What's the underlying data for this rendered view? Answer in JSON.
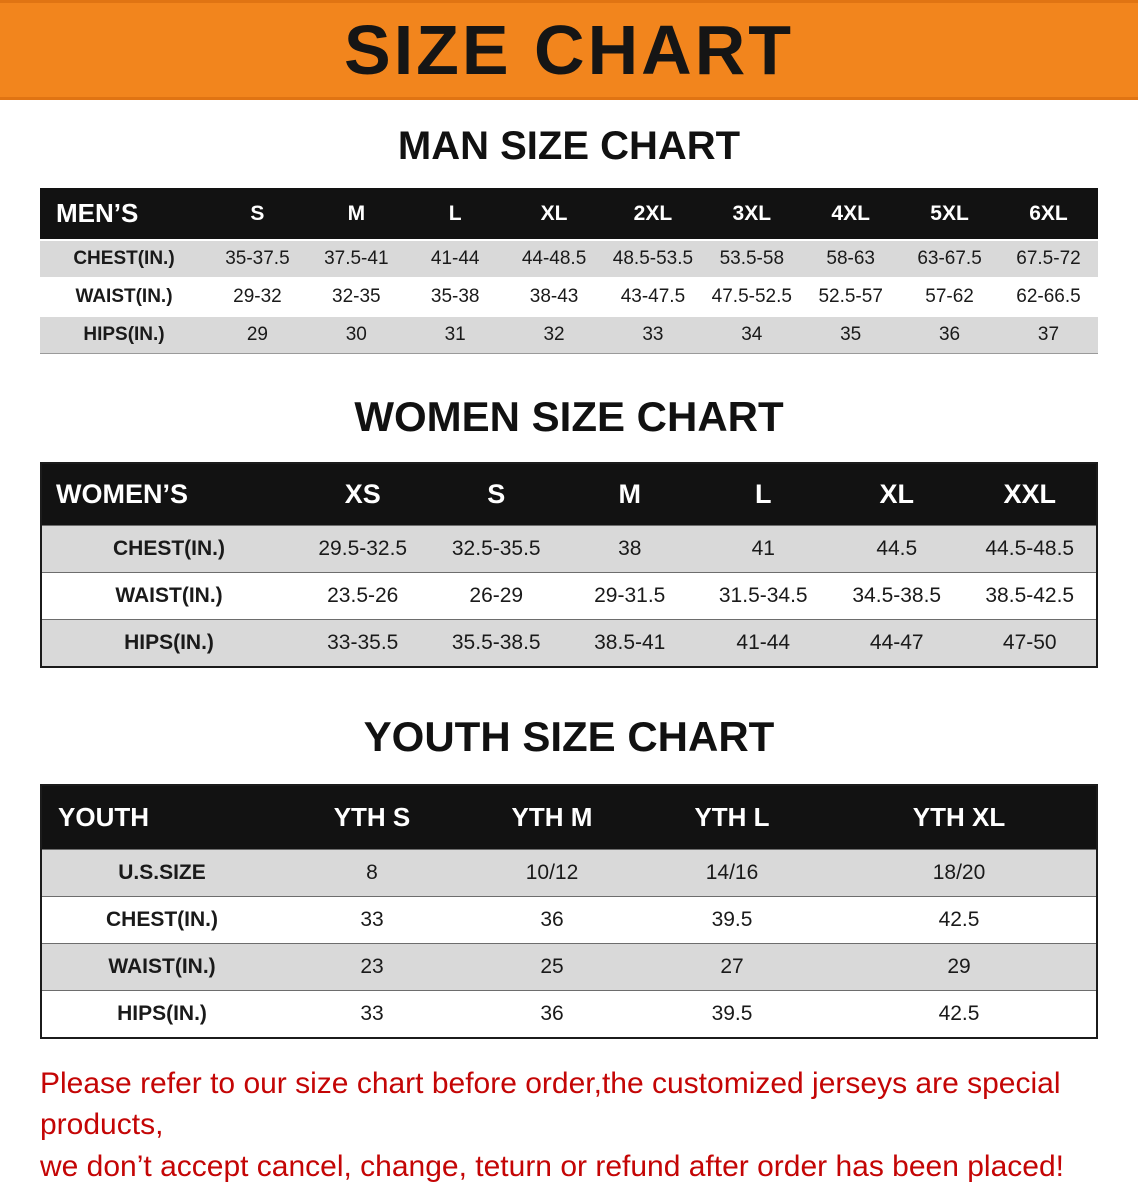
{
  "banner": {
    "title": "SIZE CHART",
    "bg_color": "#f2851d",
    "text_color": "#151515"
  },
  "sections": [
    {
      "heading": "MAN SIZE CHART",
      "table": {
        "header": [
          "MEN’S",
          "S",
          "M",
          "L",
          "XL",
          "2XL",
          "3XL",
          "4XL",
          "5XL",
          "6XL"
        ],
        "rows": [
          [
            "CHEST(IN.)",
            "35-37.5",
            "37.5-41",
            "41-44",
            "44-48.5",
            "48.5-53.5",
            "53.5-58",
            "58-63",
            "63-67.5",
            "67.5-72"
          ],
          [
            "WAIST(IN.)",
            "29-32",
            "32-35",
            "35-38",
            "38-43",
            "43-47.5",
            "47.5-52.5",
            "52.5-57",
            "57-62",
            "62-66.5"
          ],
          [
            "HIPS(IN.)",
            "29",
            "30",
            "31",
            "32",
            "33",
            "34",
            "35",
            "36",
            "37"
          ]
        ]
      }
    },
    {
      "heading": "WOMEN SIZE CHART",
      "table": {
        "header": [
          "WOMEN’S",
          "XS",
          "S",
          "M",
          "L",
          "XL",
          "XXL"
        ],
        "rows": [
          [
            "CHEST(IN.)",
            "29.5-32.5",
            "32.5-35.5",
            "38",
            "41",
            "44.5",
            "44.5-48.5"
          ],
          [
            "WAIST(IN.)",
            "23.5-26",
            "26-29",
            "29-31.5",
            "31.5-34.5",
            "34.5-38.5",
            "38.5-42.5"
          ],
          [
            "HIPS(IN.)",
            "33-35.5",
            "35.5-38.5",
            "38.5-41",
            "41-44",
            "44-47",
            "47-50"
          ]
        ]
      }
    },
    {
      "heading": "YOUTH SIZE CHART",
      "table": {
        "header": [
          "YOUTH",
          "YTH S",
          "YTH M",
          "YTH L",
          "YTH XL"
        ],
        "rows": [
          [
            "U.S.SIZE",
            "8",
            "10/12",
            "14/16",
            "18/20"
          ],
          [
            "CHEST(IN.)",
            "33",
            "36",
            "39.5",
            "42.5"
          ],
          [
            "WAIST(IN.)",
            "23",
            "25",
            "27",
            "29"
          ],
          [
            "HIPS(IN.)",
            "33",
            "36",
            "39.5",
            "42.5"
          ]
        ]
      }
    }
  ],
  "notice": {
    "line1": "Please refer to our size chart before order,the customized jerseys are special products,",
    "line2": "we don’t accept cancel, change, teturn or refund after order has been placed!",
    "text_color": "#c40505"
  },
  "colors": {
    "table_header_bg": "#121212",
    "row_alt_bg": "#d9d9d9",
    "row_bg": "#ffffff"
  }
}
